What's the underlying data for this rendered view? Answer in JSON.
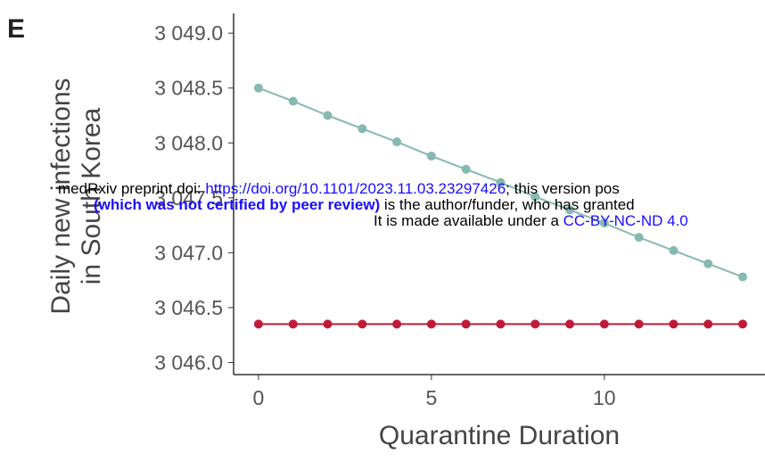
{
  "panel_label": "E",
  "chart_data": {
    "type": "line",
    "ylabel": [
      "Daily new infections",
      "in South Korea"
    ],
    "xlabel": "Quarantine Duration",
    "x": [
      0,
      1,
      2,
      3,
      4,
      5,
      6,
      7,
      8,
      9,
      10,
      11,
      12,
      13,
      14
    ],
    "series": [
      {
        "color": "#86b9b1",
        "values": [
          3048.5,
          3048.38,
          3048.25,
          3048.13,
          3048.01,
          3047.88,
          3047.76,
          3047.64,
          3047.51,
          3047.39,
          3047.27,
          3047.14,
          3047.02,
          3046.9,
          3046.78
        ]
      },
      {
        "color": "#c01a3a",
        "values": [
          3046.35,
          3046.35,
          3046.35,
          3046.35,
          3046.35,
          3046.35,
          3046.35,
          3046.35,
          3046.35,
          3046.35,
          3046.35,
          3046.35,
          3046.35,
          3046.35,
          3046.35
        ]
      }
    ],
    "xlim": [
      -0.72,
      14.8
    ],
    "xticks": [
      0,
      5,
      10
    ],
    "ylim": [
      3045.89,
      3049.18
    ],
    "yticks": [
      {
        "value": 3046.0,
        "label": "3 046.0"
      },
      {
        "value": 3046.5,
        "label": "3 046.5"
      },
      {
        "value": 3047.0,
        "label": "3 047.0"
      },
      {
        "value": 3047.5,
        "label": "3 047.5"
      },
      {
        "value": 3048.0,
        "label": "3 048.0"
      },
      {
        "value": 3048.5,
        "label": "3 048.5"
      },
      {
        "value": 3049.0,
        "label": "3 049.0"
      }
    ],
    "grid": false
  },
  "watermark": {
    "line1": [
      "medRxiv preprint doi: ",
      "https://doi.org/10.1101/2023.11.03.23297426",
      "; this version pos"
    ],
    "line2": [
      "(which was not certified by peer review)",
      " is the author/funder, who has granted"
    ],
    "line3": [
      "It is made available under a ",
      "CC-BY-NC-ND 4.0"
    ]
  }
}
